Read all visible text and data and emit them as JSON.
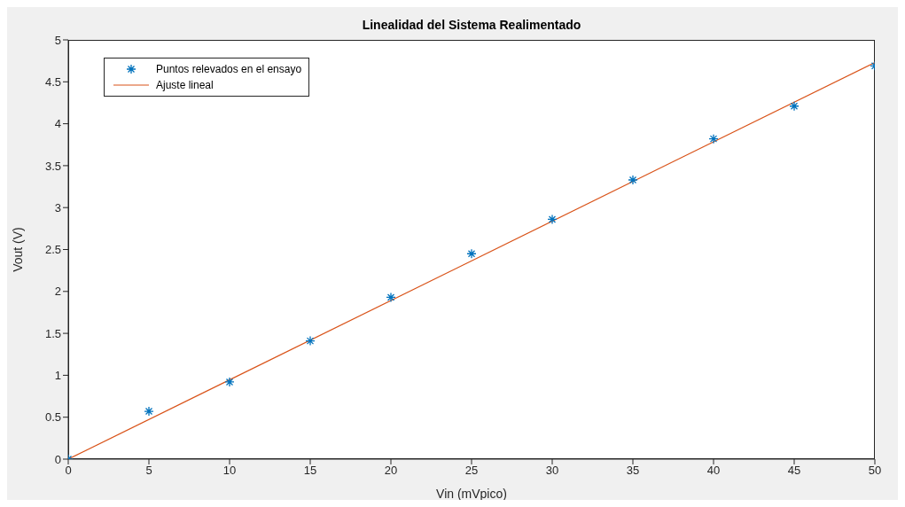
{
  "chart_data": {
    "type": "scatter",
    "title": "Linealidad del Sistema Realimentado",
    "xlabel": "Vin (mVpico)",
    "ylabel": "Vout (V)",
    "x": [
      0,
      5,
      10,
      15,
      20,
      25,
      30,
      35,
      40,
      45,
      50
    ],
    "series": [
      {
        "name": "Puntos relevados en el ensayo",
        "color": "#0072bd",
        "marker": "cross",
        "values": [
          0,
          0.57,
          0.92,
          1.41,
          1.93,
          2.45,
          2.86,
          3.33,
          3.82,
          4.21,
          4.69
        ]
      },
      {
        "name": "Ajuste lineal",
        "type": "line",
        "color": "#d95319",
        "marker": "none",
        "line_style": "solid",
        "x": [
          0,
          50
        ],
        "values": [
          0,
          4.73
        ]
      }
    ],
    "xlim": [
      0,
      50
    ],
    "xticks": [
      0,
      5,
      10,
      15,
      20,
      25,
      30,
      35,
      40,
      45,
      50
    ],
    "ylim": [
      0,
      5
    ],
    "yticks": [
      0,
      0.5,
      1,
      1.5,
      2,
      2.5,
      3,
      3.5,
      4,
      4.5,
      5
    ],
    "grid": false,
    "legend": "top left"
  }
}
